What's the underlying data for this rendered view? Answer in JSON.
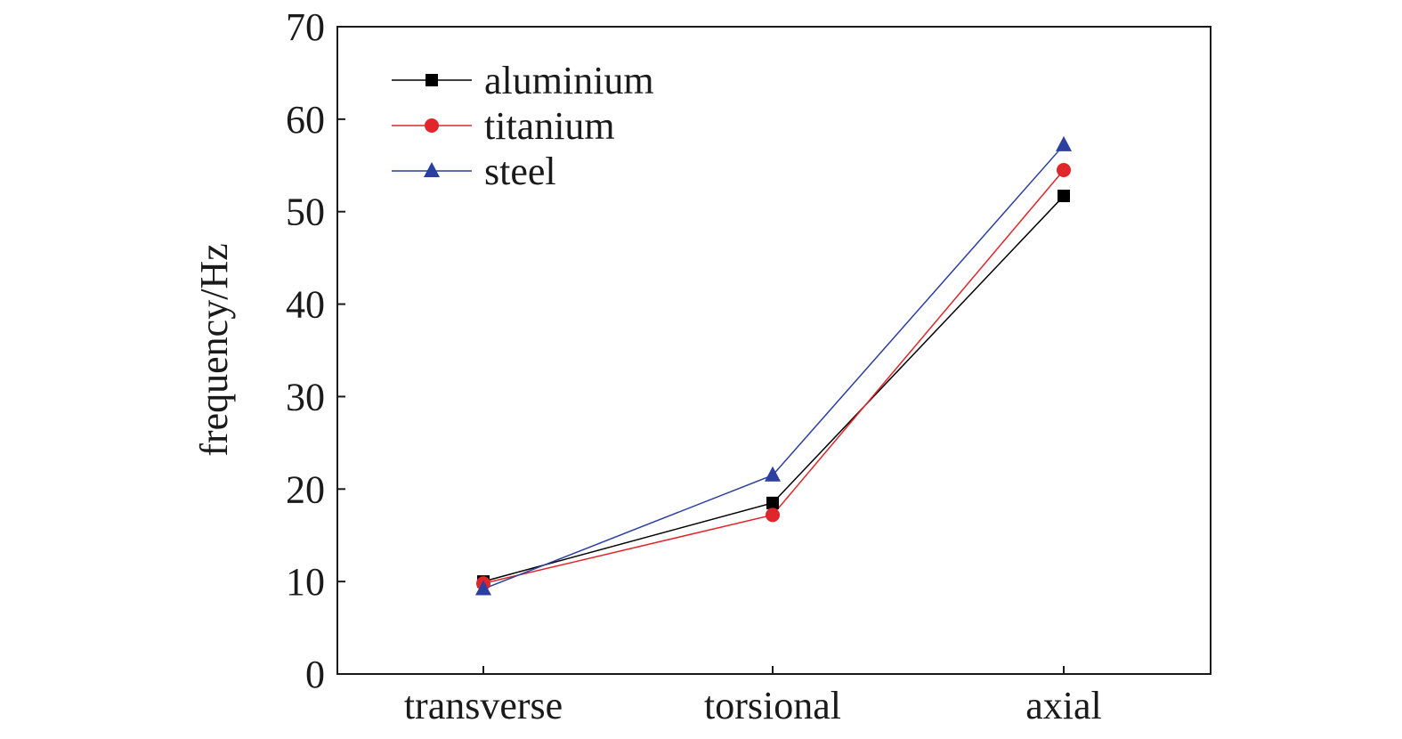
{
  "chart_data": {
    "type": "line",
    "title": "",
    "xlabel": "",
    "ylabel": "frequency/Hz",
    "categories": [
      "transverse",
      "torsional",
      "axial"
    ],
    "ylim": [
      0,
      70
    ],
    "yticks": [
      0,
      10,
      20,
      30,
      40,
      50,
      60,
      70
    ],
    "grid": false,
    "legend_position": "top-left",
    "series": [
      {
        "name": "aluminium",
        "color": "#000000",
        "marker": "square",
        "values": [
          10.0,
          18.5,
          51.7
        ]
      },
      {
        "name": "titanium",
        "color": "#e0262b",
        "marker": "circle",
        "values": [
          9.8,
          17.2,
          54.5
        ]
      },
      {
        "name": "steel",
        "color": "#2b3fa0",
        "marker": "triangle",
        "values": [
          9.2,
          21.5,
          57.2
        ]
      }
    ]
  }
}
